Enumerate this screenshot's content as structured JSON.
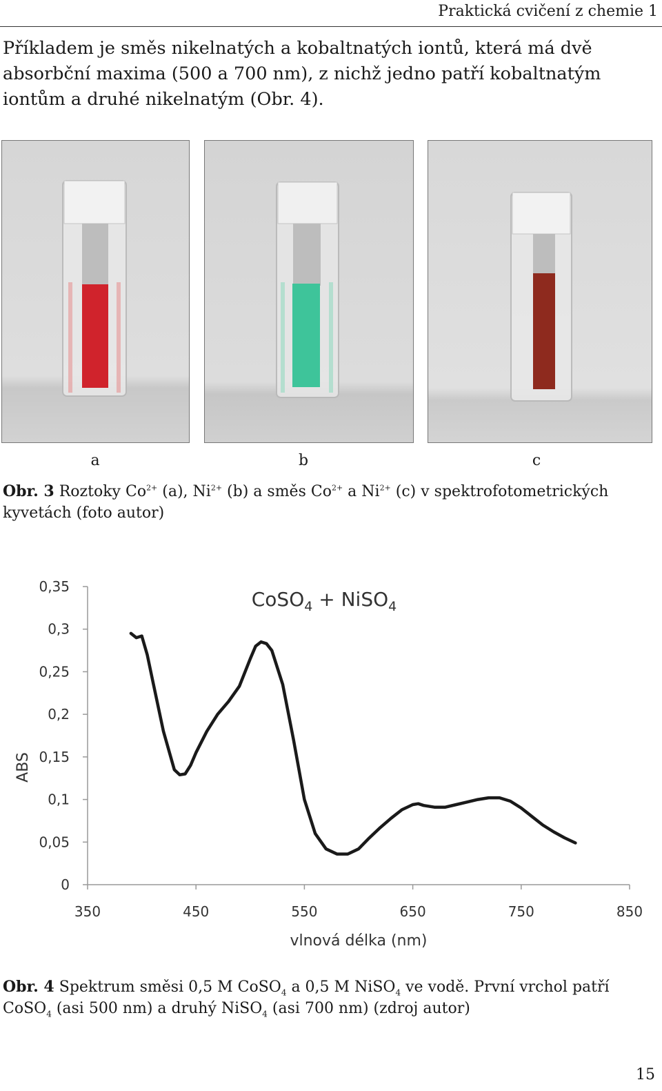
{
  "header": {
    "running_title": "Praktická cvičení z chemie 1"
  },
  "intro_text": "Příkladem je směs nikelnatých a kobaltnatých iontů, která má dvě absorbční maxima (500 a 700 nm), z nichž jedno patří kobaltnatým iontům a druhé nikelnatým (Obr. 4).",
  "figure3": {
    "photos": [
      {
        "label": "a",
        "liquid_color": "#d0232c"
      },
      {
        "label": "b",
        "liquid_color": "#3ec49a"
      },
      {
        "label": "c",
        "liquid_color": "#8e2a1e"
      }
    ],
    "caption": {
      "ref": "Obr. 3",
      "t1": " Roztoky Co",
      "sup1": "2+",
      "t2": " (a), Ni",
      "sup2": "2+",
      "t3": " (b) a směs Co",
      "sup3": "2+",
      "t4": " a Ni",
      "sup4": "2+",
      "t5": " (c) v spektrofotometrických kyvetách (foto autor)"
    }
  },
  "figure4": {
    "caption": {
      "ref": "Obr. 4",
      "t1": " Spektrum směsi 0,5 M CoSO",
      "sub1": "4",
      "t2": " a 0,5 M NiSO",
      "sub2": "4",
      "t3": " ve vodě. První vrchol patří CoSO",
      "sub3": "4",
      "t4": " (asi 500 nm) a druhý NiSO",
      "sub4": "4",
      "t5": " (asi 700 nm) (zdroj autor)"
    }
  },
  "chart_data": {
    "type": "line",
    "title_parts": {
      "a": "CoSO",
      "a_sub": "4",
      "mid": " + NiSO",
      "b_sub": "4"
    },
    "xlabel": "vlnová délka (nm)",
    "ylabel": "ABS",
    "xlim": [
      350,
      850
    ],
    "ylim": [
      0,
      0.35
    ],
    "xticks": [
      350,
      450,
      550,
      650,
      750,
      850
    ],
    "xtick_labels": [
      "350",
      "450",
      "550",
      "650",
      "750",
      "850"
    ],
    "yticks": [
      0,
      0.05,
      0.1,
      0.15,
      0.2,
      0.25,
      0.3,
      0.35
    ],
    "ytick_labels": [
      "0",
      "0,05",
      "0,1",
      "0,15",
      "0,2",
      "0,25",
      "0,3",
      "0,35"
    ],
    "line_color": "#1a1a1a",
    "grid": false,
    "x": [
      390,
      395,
      400,
      405,
      410,
      420,
      430,
      435,
      440,
      445,
      450,
      460,
      470,
      480,
      490,
      500,
      505,
      510,
      515,
      520,
      530,
      540,
      550,
      560,
      570,
      580,
      590,
      600,
      610,
      620,
      630,
      640,
      650,
      655,
      660,
      670,
      680,
      690,
      700,
      710,
      720,
      730,
      740,
      750,
      760,
      770,
      780,
      790,
      800
    ],
    "y": [
      0.295,
      0.29,
      0.292,
      0.27,
      0.24,
      0.18,
      0.135,
      0.129,
      0.13,
      0.14,
      0.155,
      0.18,
      0.2,
      0.215,
      0.233,
      0.265,
      0.28,
      0.285,
      0.283,
      0.275,
      0.235,
      0.17,
      0.1,
      0.06,
      0.042,
      0.036,
      0.036,
      0.042,
      0.055,
      0.067,
      0.078,
      0.088,
      0.094,
      0.095,
      0.093,
      0.091,
      0.091,
      0.094,
      0.097,
      0.1,
      0.102,
      0.102,
      0.098,
      0.09,
      0.08,
      0.07,
      0.062,
      0.055,
      0.049
    ]
  },
  "page_number": "15"
}
